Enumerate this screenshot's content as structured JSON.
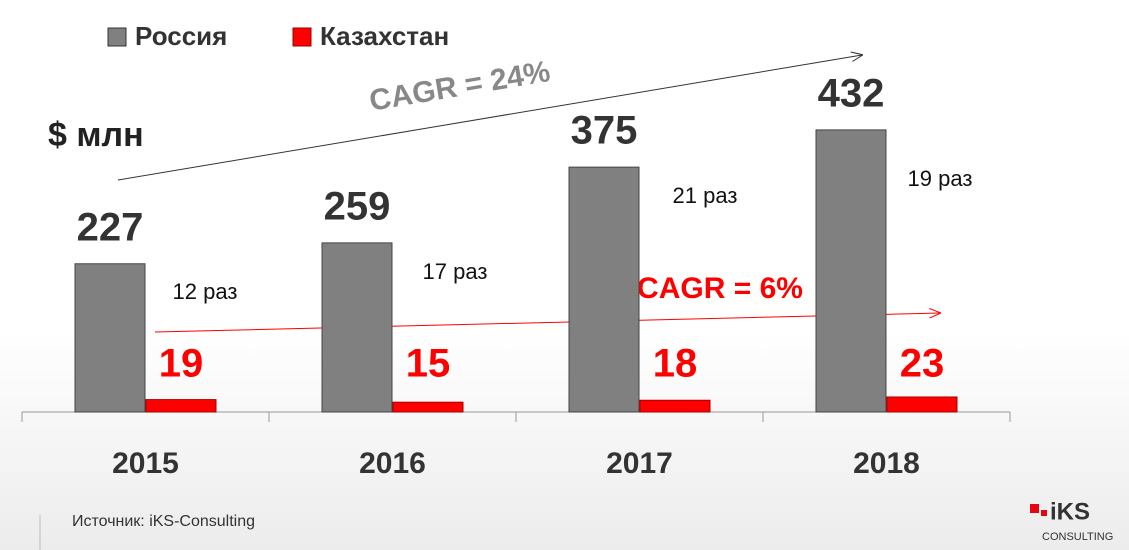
{
  "chart_data": {
    "type": "bar",
    "unit_label": "$ млн",
    "categories": [
      "2015",
      "2016",
      "2017",
      "2018"
    ],
    "series": [
      {
        "name": "Россия",
        "color": "#808080",
        "values": [
          227,
          259,
          375,
          432
        ]
      },
      {
        "name": "Казахстан",
        "color": "#ff0000",
        "values": [
          19,
          15,
          18,
          23
        ]
      }
    ],
    "ratio_labels": [
      "12 раз",
      "17 раз",
      "21 раз",
      "19 раз"
    ],
    "annotations": [
      "CAGR = 24%",
      "CAGR = 6%"
    ],
    "source": "Источник: iKS-Consulting",
    "logo": [
      "iKS",
      "CONSULTING"
    ]
  }
}
